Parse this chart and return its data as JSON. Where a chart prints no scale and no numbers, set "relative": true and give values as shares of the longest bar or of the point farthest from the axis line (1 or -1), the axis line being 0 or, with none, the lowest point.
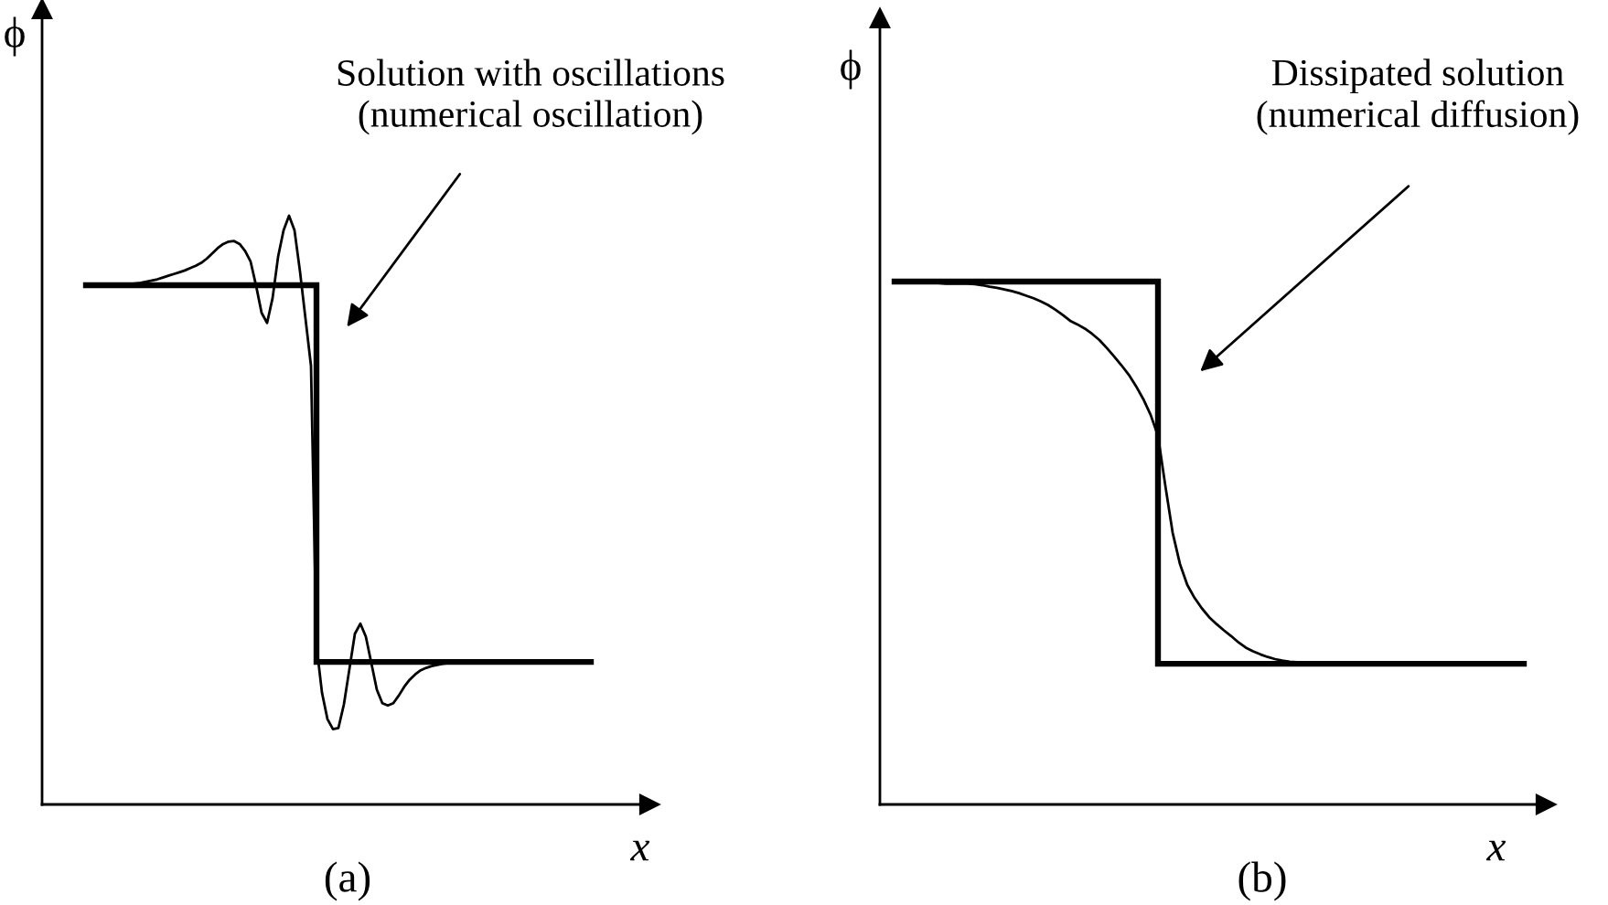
{
  "chart_data": [
    {
      "type": "line",
      "relative": true,
      "title": "(a)",
      "xlabel": "x",
      "ylabel": "ϕ",
      "annotations": [
        "Solution with oscillations\n(numerical oscillation)"
      ],
      "categories": [
        null,
        null,
        null,
        null,
        null,
        null,
        null,
        null,
        null,
        null,
        null,
        null,
        null,
        null,
        null,
        null,
        null,
        null,
        null,
        null,
        null,
        null,
        null,
        null,
        null,
        null,
        null,
        null,
        null,
        null,
        null,
        null,
        null,
        null,
        null,
        null,
        null,
        null,
        null,
        null,
        null,
        null,
        null,
        null,
        null,
        null,
        null,
        null,
        null,
        null,
        null,
        null,
        null,
        null,
        null,
        null,
        null,
        null,
        null,
        null,
        null,
        null,
        null,
        null,
        null,
        null,
        null,
        null,
        null,
        null,
        null,
        null,
        null,
        null,
        null,
        null,
        null,
        null,
        null,
        null,
        null,
        null,
        null,
        null,
        null,
        null,
        null,
        null,
        null,
        null,
        null,
        null,
        null
      ],
      "series": [
        {
          "type": "step",
          "color": "#000000",
          "values": [
            0.882,
            0.882,
            0.882,
            0.882,
            0.882,
            0.882,
            0.882,
            0.882,
            0.882,
            0.882,
            0.882,
            0.882,
            0.882,
            0.882,
            0.882,
            0.882,
            0.882,
            0.882,
            0.882,
            0.882,
            0.882,
            0.882,
            0.882,
            0.882,
            0.882,
            0.882,
            0.882,
            0.882,
            0.882,
            0.882,
            0.882,
            0.882,
            0.882,
            0.882,
            0.882,
            0.882,
            0.882,
            0.882,
            0.882,
            0.882,
            0.882,
            0.882,
            0.242,
            0.242,
            0.242,
            0.242,
            0.242,
            0.242,
            0.242,
            0.242,
            0.242,
            0.242,
            0.242,
            0.242,
            0.242,
            0.242,
            0.242,
            0.242,
            0.242,
            0.242,
            0.242,
            0.242,
            0.242,
            0.242,
            0.242,
            0.242,
            0.242,
            0.242,
            0.242,
            0.242,
            0.242,
            0.242,
            0.242,
            0.242,
            0.242,
            0.242,
            0.242,
            0.242,
            0.242,
            0.242,
            0.242,
            0.242,
            0.242,
            0.242,
            0.242,
            0.242,
            0.242,
            0.242,
            0.242,
            0.242,
            0.242,
            0.242,
            0.242
          ]
        },
        {
          "type": "line",
          "color": "#000000",
          "values": [
            0.882,
            0.882,
            0.882,
            0.882,
            0.882,
            0.882,
            0.883,
            0.883,
            0.884,
            0.885,
            0.886,
            0.888,
            0.89,
            0.892,
            0.895,
            0.898,
            0.901,
            0.904,
            0.907,
            0.911,
            0.915,
            0.92,
            0.927,
            0.936,
            0.945,
            0.952,
            0.956,
            0.957,
            0.952,
            0.94,
            0.922,
            0.881,
            0.835,
            0.818,
            0.86,
            0.93,
            0.975,
            1.0,
            0.975,
            0.905,
            0.825,
            0.745,
            0.27,
            0.19,
            0.145,
            0.128,
            0.13,
            0.17,
            0.23,
            0.29,
            0.307,
            0.285,
            0.24,
            0.195,
            0.172,
            0.168,
            0.172,
            0.185,
            0.2,
            0.212,
            0.221,
            0.228,
            0.232,
            0.235,
            0.237,
            0.239,
            0.24,
            0.241,
            0.241,
            0.242,
            0.242,
            0.242,
            0.242,
            0.242,
            0.242,
            0.242,
            0.242,
            0.242,
            0.242,
            0.242,
            0.242,
            0.242,
            0.242,
            0.242,
            0.242,
            0.242,
            0.242,
            0.242,
            0.242,
            0.242,
            0.242,
            0.242,
            0.242
          ]
        }
      ]
    },
    {
      "type": "line",
      "relative": true,
      "title": "(b)",
      "xlabel": "x",
      "ylabel": "ϕ",
      "annotations": [
        "Dissipated solution\n(numerical diffusion)"
      ],
      "categories": [
        null,
        null,
        null,
        null,
        null,
        null,
        null,
        null,
        null,
        null,
        null,
        null,
        null,
        null,
        null,
        null,
        null,
        null,
        null,
        null,
        null,
        null,
        null,
        null,
        null,
        null,
        null,
        null,
        null,
        null,
        null,
        null,
        null,
        null,
        null,
        null,
        null,
        null,
        null,
        null,
        null,
        null,
        null,
        null,
        null,
        null,
        null,
        null,
        null,
        null,
        null,
        null,
        null,
        null,
        null,
        null,
        null,
        null,
        null,
        null,
        null,
        null,
        null,
        null,
        null,
        null,
        null,
        null,
        null,
        null,
        null,
        null,
        null,
        null,
        null,
        null,
        null,
        null,
        null,
        null,
        null,
        null,
        null,
        null,
        null,
        null,
        null
      ],
      "series": [
        {
          "type": "step",
          "color": "#000000",
          "values": [
            1,
            1,
            1,
            1,
            1,
            1,
            1,
            1,
            1,
            1,
            1,
            1,
            1,
            1,
            1,
            1,
            1,
            1,
            1,
            1,
            1,
            1,
            1,
            1,
            1,
            1,
            1,
            1,
            1,
            1,
            1,
            1,
            1,
            1,
            1,
            1,
            0.269,
            0.269,
            0.269,
            0.269,
            0.269,
            0.269,
            0.269,
            0.269,
            0.269,
            0.269,
            0.269,
            0.269,
            0.269,
            0.269,
            0.269,
            0.269,
            0.269,
            0.269,
            0.269,
            0.269,
            0.269,
            0.269,
            0.269,
            0.269,
            0.269,
            0.269,
            0.269,
            0.269,
            0.269,
            0.269,
            0.269,
            0.269,
            0.269,
            0.269,
            0.269,
            0.269,
            0.269,
            0.269,
            0.269,
            0.269,
            0.269,
            0.269,
            0.269,
            0.269,
            0.269,
            0.269,
            0.269,
            0.269,
            0.269,
            0.269,
            0.269
          ]
        },
        {
          "type": "line",
          "color": "#000000",
          "values": [
            1,
            1,
            1,
            0.999,
            0.998,
            0.997,
            0.997,
            0.996,
            0.996,
            0.996,
            0.996,
            0.995,
            0.993,
            0.99,
            0.988,
            0.985,
            0.982,
            0.978,
            0.973,
            0.968,
            0.962,
            0.955,
            0.946,
            0.936,
            0.925,
            0.918,
            0.91,
            0.9,
            0.888,
            0.873,
            0.857,
            0.84,
            0.822,
            0.8,
            0.775,
            0.745,
            0.705,
            0.61,
            0.52,
            0.46,
            0.42,
            0.395,
            0.375,
            0.358,
            0.345,
            0.333,
            0.322,
            0.31,
            0.3,
            0.293,
            0.287,
            0.282,
            0.278,
            0.275,
            0.273,
            0.272,
            0.271,
            0.27,
            0.27,
            0.269,
            0.269,
            0.269,
            0.269,
            0.269,
            0.269,
            0.269,
            0.269,
            0.269,
            0.269,
            0.269,
            0.269,
            0.269,
            0.269,
            0.269,
            0.269,
            0.269,
            0.269,
            0.269,
            0.269,
            0.269,
            0.269,
            0.269,
            0.269,
            0.269,
            0.269,
            0.269,
            0.269
          ]
        }
      ]
    }
  ]
}
